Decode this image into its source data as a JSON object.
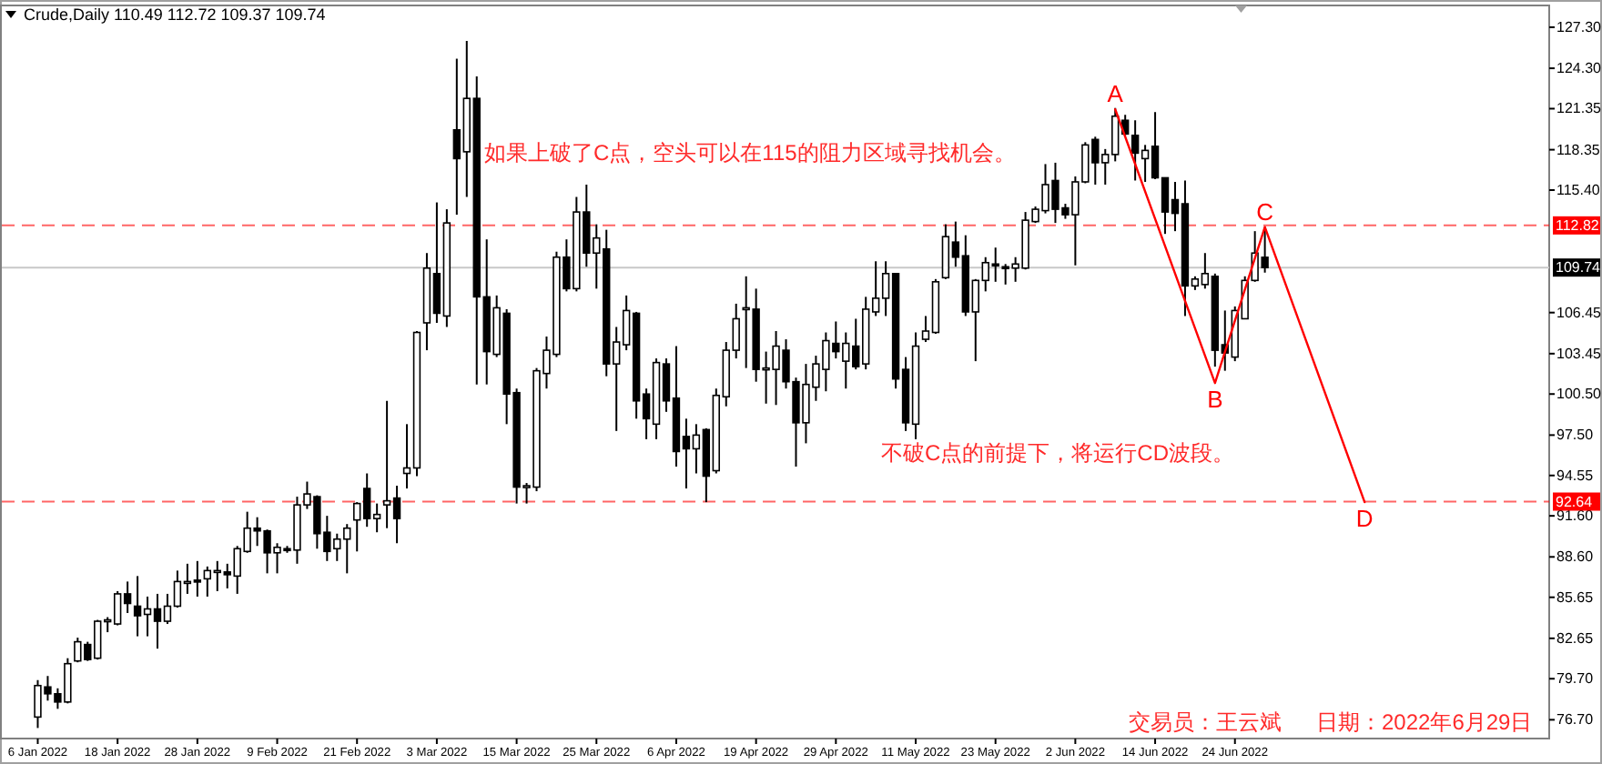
{
  "chart_data": {
    "type": "candlestick",
    "title": "Crude,Daily 110.49 112.72 109.37 109.74",
    "annotations": [
      "如果上破了C点，空头可以在115的阻力区域寻找机会。",
      "不破C点的前提下，将运行CD波段。",
      "交易员：王云斌",
      "日期：2022年6月29日"
    ],
    "categories": [
      "6 Jan 2022",
      null,
      null,
      null,
      null,
      null,
      null,
      null,
      "18 Jan 2022",
      null,
      null,
      null,
      null,
      null,
      null,
      null,
      "28 Jan 2022",
      null,
      null,
      null,
      null,
      null,
      null,
      null,
      "9 Feb 2022",
      null,
      null,
      null,
      null,
      null,
      null,
      null,
      "21 Feb 2022",
      null,
      null,
      null,
      null,
      null,
      null,
      null,
      "3 Mar 2022",
      null,
      null,
      null,
      null,
      null,
      null,
      null,
      "15 Mar 2022",
      null,
      null,
      null,
      null,
      null,
      null,
      null,
      "25 Mar 2022",
      null,
      null,
      null,
      null,
      null,
      null,
      null,
      "6 Apr 2022",
      null,
      null,
      null,
      null,
      null,
      null,
      null,
      "19 Apr 2022",
      null,
      null,
      null,
      null,
      null,
      null,
      null,
      "29 Apr 2022",
      null,
      null,
      null,
      null,
      null,
      null,
      null,
      "11 May 2022",
      null,
      null,
      null,
      null,
      null,
      null,
      null,
      "23 May 2022",
      null,
      null,
      null,
      null,
      null,
      null,
      null,
      "2 Jun 2022",
      null,
      null,
      null,
      null,
      null,
      null,
      null,
      "14 Jun 2022",
      null,
      null,
      null,
      null,
      null,
      null,
      null,
      "24 Jun 2022",
      null,
      null,
      null,
      null,
      null,
      null,
      null,
      null,
      null,
      null,
      null,
      null,
      null,
      null,
      null,
      null,
      null,
      null,
      null,
      null,
      null,
      null,
      null,
      null,
      null,
      null,
      null,
      null,
      null,
      null,
      null
    ],
    "ohlc": [
      [
        76.9,
        79.6,
        76.1,
        79.2
      ],
      [
        79.1,
        79.9,
        78.1,
        78.6
      ],
      [
        78.6,
        79.0,
        77.5,
        78.0
      ],
      [
        78.0,
        81.2,
        77.9,
        80.8
      ],
      [
        81.0,
        82.7,
        80.9,
        82.4
      ],
      [
        82.2,
        82.4,
        81.0,
        81.1
      ],
      [
        81.2,
        84.0,
        81.1,
        83.9
      ],
      [
        83.9,
        84.2,
        83.1,
        84.0
      ],
      [
        83.7,
        86.1,
        83.6,
        85.9
      ],
      [
        85.9,
        86.8,
        84.5,
        85.2
      ],
      [
        85.0,
        87.2,
        82.8,
        84.3
      ],
      [
        84.4,
        85.7,
        82.8,
        84.8
      ],
      [
        84.8,
        85.9,
        81.9,
        83.9
      ],
      [
        83.9,
        85.9,
        83.7,
        85.0
      ],
      [
        85.0,
        87.6,
        84.9,
        86.8
      ],
      [
        86.7,
        88.1,
        85.9,
        86.8
      ],
      [
        86.9,
        88.3,
        85.7,
        86.8
      ],
      [
        87.0,
        87.9,
        85.7,
        87.6
      ],
      [
        87.5,
        88.3,
        86.1,
        87.6
      ],
      [
        87.5,
        88.1,
        86.3,
        87.3
      ],
      [
        87.2,
        89.4,
        85.9,
        89.2
      ],
      [
        89.0,
        91.9,
        88.9,
        90.7
      ],
      [
        90.7,
        91.5,
        89.4,
        90.5
      ],
      [
        90.5,
        90.6,
        87.4,
        88.9
      ],
      [
        88.9,
        89.6,
        87.4,
        89.3
      ],
      [
        89.2,
        89.4,
        88.9,
        89.1
      ],
      [
        89.1,
        93.0,
        88.1,
        92.4
      ],
      [
        92.4,
        94.1,
        92.1,
        93.2
      ],
      [
        93.0,
        93.1,
        89.2,
        90.3
      ],
      [
        90.4,
        91.6,
        88.3,
        89.0
      ],
      [
        89.2,
        90.3,
        88.3,
        89.9
      ],
      [
        89.9,
        91.0,
        87.4,
        90.7
      ],
      [
        91.3,
        92.6,
        89.0,
        92.5
      ],
      [
        93.6,
        94.7,
        90.8,
        91.4
      ],
      [
        91.4,
        92.5,
        90.4,
        91.7
      ],
      [
        92.4,
        100.0,
        90.7,
        92.7
      ],
      [
        92.9,
        93.8,
        89.6,
        91.4
      ],
      [
        94.7,
        98.3,
        93.6,
        95.1
      ],
      [
        95.1,
        105.1,
        94.5,
        105.0
      ],
      [
        105.7,
        110.8,
        103.7,
        109.7
      ],
      [
        109.3,
        114.5,
        105.7,
        106.4
      ],
      [
        106.2,
        114.0,
        105.4,
        113.0
      ],
      [
        119.8,
        125.0,
        113.6,
        117.7
      ],
      [
        118.2,
        126.3,
        114.9,
        122.1
      ],
      [
        122.1,
        123.7,
        101.2,
        107.6
      ],
      [
        107.6,
        111.8,
        101.2,
        103.6
      ],
      [
        103.4,
        107.7,
        103.2,
        106.8
      ],
      [
        106.4,
        106.7,
        98.3,
        100.5
      ],
      [
        100.6,
        100.9,
        92.5,
        93.7
      ],
      [
        93.7,
        94.0,
        92.5,
        93.8
      ],
      [
        93.7,
        102.4,
        93.4,
        102.2
      ],
      [
        102.0,
        104.7,
        100.9,
        103.7
      ],
      [
        103.4,
        110.9,
        103.2,
        110.5
      ],
      [
        110.5,
        111.8,
        108.0,
        108.2
      ],
      [
        108.2,
        114.9,
        108.0,
        113.8
      ],
      [
        113.8,
        115.8,
        109.8,
        110.8
      ],
      [
        110.8,
        112.9,
        108.2,
        111.9
      ],
      [
        111.1,
        112.5,
        101.8,
        102.7
      ],
      [
        102.7,
        105.4,
        97.8,
        104.3
      ],
      [
        104.1,
        107.7,
        103.7,
        106.6
      ],
      [
        106.4,
        106.5,
        98.7,
        100.0
      ],
      [
        100.5,
        100.9,
        97.2,
        98.7
      ],
      [
        98.3,
        103.1,
        97.2,
        102.8
      ],
      [
        102.7,
        103.1,
        99.2,
        100.0
      ],
      [
        100.2,
        104.0,
        95.2,
        96.3
      ],
      [
        97.4,
        98.7,
        93.6,
        96.5
      ],
      [
        96.5,
        98.3,
        94.7,
        97.5
      ],
      [
        97.9,
        98.0,
        92.6,
        94.5
      ],
      [
        94.9,
        100.9,
        94.7,
        100.4
      ],
      [
        100.3,
        104.3,
        99.6,
        103.7
      ],
      [
        103.7,
        107.1,
        103.1,
        106.0
      ],
      [
        106.7,
        109.1,
        102.4,
        106.8
      ],
      [
        106.7,
        108.2,
        101.4,
        102.3
      ],
      [
        102.4,
        103.6,
        99.8,
        102.4
      ],
      [
        102.3,
        105.1,
        99.7,
        104.0
      ],
      [
        103.7,
        104.5,
        100.9,
        101.4
      ],
      [
        101.4,
        101.7,
        95.2,
        98.4
      ],
      [
        98.4,
        102.7,
        96.9,
        101.2
      ],
      [
        101.0,
        103.3,
        100.0,
        102.7
      ],
      [
        102.3,
        105.0,
        100.7,
        104.4
      ],
      [
        104.2,
        105.8,
        103.1,
        103.6
      ],
      [
        102.9,
        105.0,
        100.9,
        104.2
      ],
      [
        104.0,
        106.0,
        102.3,
        102.5
      ],
      [
        102.7,
        107.6,
        102.3,
        106.7
      ],
      [
        106.5,
        110.2,
        106.2,
        107.5
      ],
      [
        107.5,
        110.2,
        106.2,
        109.3
      ],
      [
        109.3,
        109.3,
        100.9,
        101.6
      ],
      [
        102.3,
        103.2,
        97.8,
        98.4
      ],
      [
        98.3,
        105.0,
        97.2,
        104.0
      ],
      [
        104.5,
        106.2,
        104.3,
        105.1
      ],
      [
        105.0,
        108.9,
        104.9,
        108.7
      ],
      [
        109.0,
        112.9,
        108.9,
        112.0
      ],
      [
        111.6,
        113.1,
        109.8,
        110.5
      ],
      [
        110.6,
        112.1,
        106.2,
        106.5
      ],
      [
        106.5,
        108.9,
        102.9,
        108.8
      ],
      [
        108.8,
        110.5,
        108.0,
        110.1
      ],
      [
        110.0,
        111.2,
        108.7,
        109.9
      ],
      [
        109.8,
        110.0,
        108.5,
        109.7
      ],
      [
        109.7,
        110.5,
        108.7,
        110.0
      ],
      [
        109.7,
        113.8,
        109.6,
        113.2
      ],
      [
        113.1,
        114.2,
        113.0,
        114.0
      ],
      [
        113.9,
        117.3,
        113.7,
        115.8
      ],
      [
        116.1,
        117.4,
        113.0,
        114.0
      ],
      [
        114.1,
        114.4,
        113.3,
        113.6
      ],
      [
        113.6,
        116.4,
        109.9,
        116.0
      ],
      [
        116.0,
        118.9,
        115.9,
        118.7
      ],
      [
        119.1,
        119.3,
        115.8,
        117.4
      ],
      [
        117.4,
        118.4,
        115.8,
        118.0
      ],
      [
        118.0,
        121.4,
        117.5,
        120.8
      ],
      [
        120.5,
        120.9,
        119.4,
        119.5
      ],
      [
        119.4,
        120.5,
        116.1,
        118.1
      ],
      [
        117.7,
        118.7,
        116.0,
        118.3
      ],
      [
        118.6,
        121.1,
        116.2,
        116.3
      ],
      [
        116.3,
        116.3,
        112.2,
        113.8
      ],
      [
        114.7,
        116.0,
        112.4,
        113.7
      ],
      [
        114.4,
        116.1,
        106.2,
        108.4
      ],
      [
        108.4,
        109.1,
        108.1,
        108.9
      ],
      [
        108.5,
        110.8,
        108.2,
        109.3
      ],
      [
        109.1,
        109.3,
        102.5,
        103.7
      ],
      [
        104.1,
        106.6,
        102.2,
        103.5
      ],
      [
        103.2,
        106.9,
        102.9,
        106.6
      ],
      [
        106.0,
        109.1,
        106.0,
        108.8
      ],
      [
        108.8,
        112.4,
        108.7,
        110.8
      ],
      [
        110.49,
        112.72,
        109.37,
        109.74
      ],
      null,
      null,
      null,
      null,
      null,
      null,
      null,
      null,
      null,
      null,
      null,
      null,
      null,
      null,
      null,
      null,
      null,
      null,
      null,
      null,
      null,
      null,
      null,
      null,
      null,
      null,
      null,
      null
    ],
    "series": [
      {
        "type": "line",
        "color": "#ff0000",
        "values": [
          null,
          null,
          null,
          null,
          null,
          null,
          null,
          null,
          null,
          null,
          null,
          null,
          null,
          null,
          null,
          null,
          null,
          null,
          null,
          null,
          null,
          null,
          null,
          null,
          null,
          null,
          null,
          null,
          null,
          null,
          null,
          null,
          null,
          null,
          null,
          null,
          null,
          null,
          null,
          null,
          null,
          null,
          null,
          null,
          null,
          null,
          null,
          null,
          null,
          null,
          null,
          null,
          null,
          null,
          null,
          null,
          null,
          null,
          null,
          null,
          null,
          null,
          null,
          null,
          null,
          null,
          null,
          null,
          null,
          null,
          null,
          null,
          null,
          null,
          null,
          null,
          null,
          null,
          null,
          null,
          null,
          null,
          null,
          null,
          null,
          null,
          null,
          null,
          null,
          null,
          null,
          null,
          null,
          null,
          null,
          null,
          null,
          null,
          null,
          null,
          null,
          null,
          null,
          null,
          null,
          null,
          null,
          null,
          121.3,
          null,
          null,
          null,
          null,
          null,
          null,
          null,
          null,
          null,
          101.3,
          null,
          null,
          null,
          null,
          112.7,
          null,
          null,
          null,
          null,
          null,
          null,
          null,
          null,
          null,
          92.6,
          null,
          null,
          null,
          null,
          null,
          null,
          null,
          null,
          null,
          null,
          null,
          null,
          null,
          null,
          null,
          null,
          null,
          null
        ],
        "value_labels": [
          null,
          null,
          null,
          null,
          null,
          null,
          null,
          null,
          null,
          null,
          null,
          null,
          null,
          null,
          null,
          null,
          null,
          null,
          null,
          null,
          null,
          null,
          null,
          null,
          null,
          null,
          null,
          null,
          null,
          null,
          null,
          null,
          null,
          null,
          null,
          null,
          null,
          null,
          null,
          null,
          null,
          null,
          null,
          null,
          null,
          null,
          null,
          null,
          null,
          null,
          null,
          null,
          null,
          null,
          null,
          null,
          null,
          null,
          null,
          null,
          null,
          null,
          null,
          null,
          null,
          null,
          null,
          null,
          null,
          null,
          null,
          null,
          null,
          null,
          null,
          null,
          null,
          null,
          null,
          null,
          null,
          null,
          null,
          null,
          null,
          null,
          null,
          null,
          null,
          null,
          null,
          null,
          null,
          null,
          null,
          null,
          null,
          null,
          null,
          null,
          null,
          null,
          null,
          null,
          null,
          null,
          null,
          null,
          "A",
          null,
          null,
          null,
          null,
          null,
          null,
          null,
          null,
          null,
          "B",
          null,
          null,
          null,
          null,
          "C",
          null,
          null,
          null,
          null,
          null,
          null,
          null,
          null,
          null,
          "D",
          null,
          null,
          null,
          null,
          null,
          null,
          null,
          null,
          null,
          null,
          null,
          null,
          null,
          null,
          null,
          null,
          null,
          null
        ]
      }
    ],
    "ylim": [
      75.33,
      128.89
    ],
    "yticks": [
      {
        "value": 127.3,
        "label": "127.30"
      },
      {
        "value": 124.3,
        "label": "124.30"
      },
      121.35,
      118.35,
      {
        "value": 115.4,
        "label": "115.40"
      },
      106.45,
      103.45,
      {
        "value": 100.5,
        "label": "100.50"
      },
      {
        "value": 97.5,
        "label": "97.50"
      },
      94.55,
      {
        "value": 91.6,
        "label": "91.60"
      },
      {
        "value": 88.6,
        "label": "88.60"
      },
      85.65,
      82.65,
      {
        "value": 79.7,
        "label": "79.70"
      },
      {
        "value": 76.7,
        "label": "76.70"
      }
    ],
    "ref_lines": [
      {
        "axis": "y",
        "value": 112.82,
        "label": "112.82",
        "color": "#ff0000",
        "line_style": "dashed"
      },
      {
        "axis": "y",
        "value": 109.74,
        "label": "109.74",
        "color": "#c8c8c8",
        "line_style": "solid"
      },
      {
        "axis": "y",
        "value": 92.64,
        "label": "92.64",
        "color": "#ff0000",
        "line_style": "dashed"
      }
    ]
  }
}
